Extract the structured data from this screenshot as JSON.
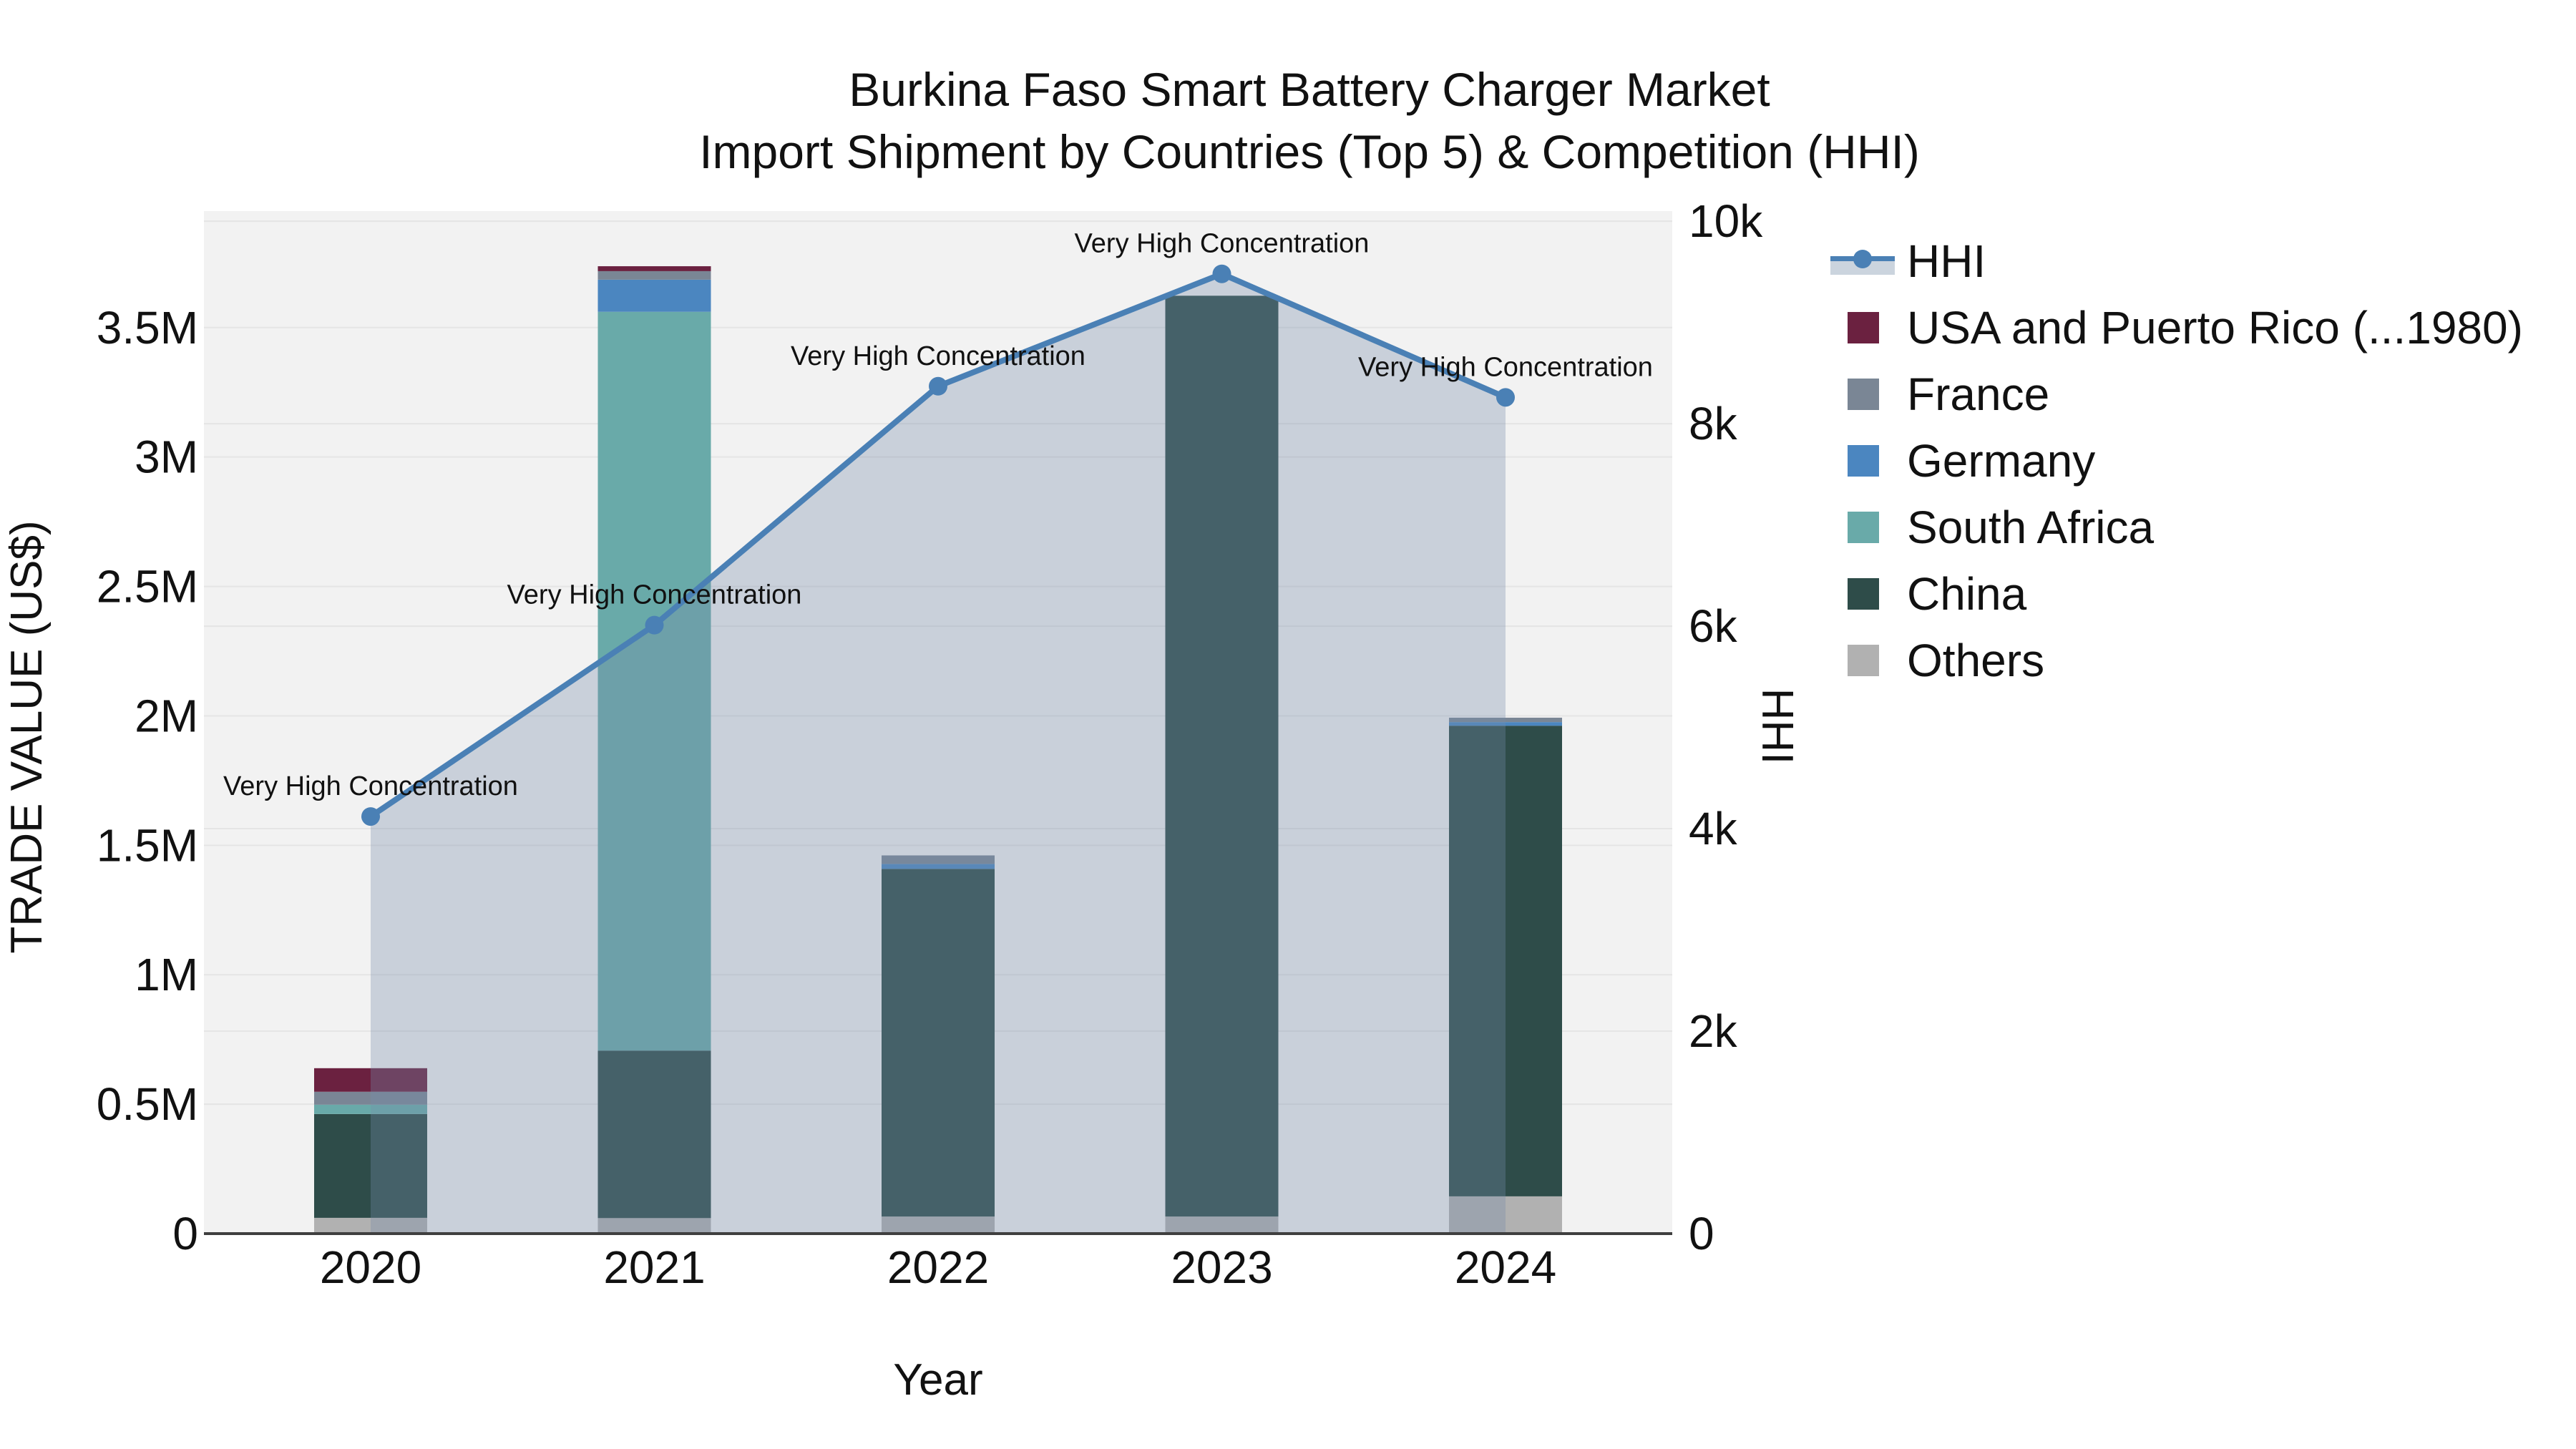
{
  "title": {
    "line1": "Burkina Faso Smart Battery Charger Market",
    "line2": "Import Shipment by Countries (Top 5) & Competition (HHI)"
  },
  "axes": {
    "x_title": "Year",
    "y_left_title": "TRADE VALUE (US$)",
    "y_right_title": "HHI",
    "y_left_max": 3950000,
    "y_right_max": 10100,
    "y_left_ticks": [
      {
        "label": "0",
        "value": 0
      },
      {
        "label": "0.5M",
        "value": 500000
      },
      {
        "label": "1M",
        "value": 1000000
      },
      {
        "label": "1.5M",
        "value": 1500000
      },
      {
        "label": "2M",
        "value": 2000000
      },
      {
        "label": "2.5M",
        "value": 2500000
      },
      {
        "label": "3M",
        "value": 3000000
      },
      {
        "label": "3.5M",
        "value": 3500000
      }
    ],
    "y_right_ticks": [
      {
        "label": "0",
        "value": 0
      },
      {
        "label": "2k",
        "value": 2000
      },
      {
        "label": "4k",
        "value": 4000
      },
      {
        "label": "6k",
        "value": 6000
      },
      {
        "label": "8k",
        "value": 8000
      },
      {
        "label": "10k",
        "value": 10000
      }
    ]
  },
  "legend": {
    "items": [
      {
        "label": "HHI",
        "color": "#4a80b5",
        "type": "line"
      },
      {
        "label": "USA and Puerto Rico (...1980)",
        "color": "#6b2140",
        "type": "swatch"
      },
      {
        "label": "France",
        "color": "#7a8695",
        "type": "swatch"
      },
      {
        "label": "Germany",
        "color": "#4b86c0",
        "type": "swatch"
      },
      {
        "label": "South Africa",
        "color": "#69aaa9",
        "type": "swatch"
      },
      {
        "label": "China",
        "color": "#2e4c49",
        "type": "swatch"
      },
      {
        "label": "Others",
        "color": "#b1b1b1",
        "type": "swatch"
      }
    ]
  },
  "chart_data": {
    "type": "combo-stacked-bar-and-line",
    "categories": [
      "2020",
      "2021",
      "2022",
      "2023",
      "2024"
    ],
    "bar_unit": "US$",
    "series": [
      {
        "name": "Others",
        "color": "#b1b1b1",
        "values": [
          61000,
          60000,
          66000,
          66000,
          144000
        ]
      },
      {
        "name": "China",
        "color": "#2e4c49",
        "values": [
          401000,
          647000,
          1343000,
          3557000,
          1818000
        ]
      },
      {
        "name": "South Africa",
        "color": "#69aaa9",
        "values": [
          36000,
          2854000,
          0,
          0,
          0
        ]
      },
      {
        "name": "Germany",
        "color": "#4b86c0",
        "values": [
          0,
          124000,
          19000,
          0,
          14000
        ]
      },
      {
        "name": "France",
        "color": "#7a8695",
        "values": [
          50000,
          33000,
          33000,
          0,
          17000
        ]
      },
      {
        "name": "USA and Puerto Rico (...1980)",
        "color": "#6b2140",
        "values": [
          91000,
          19000,
          0,
          0,
          0
        ]
      }
    ],
    "bar_totals": [
      639000,
      3737000,
      1461000,
      3623000,
      1993000
    ],
    "hhi": {
      "name": "HHI",
      "values": [
        4120,
        6010,
        8370,
        9480,
        8260
      ],
      "annotations": [
        "Very High Concentration",
        "Very High Concentration",
        "Very High Concentration",
        "Very High Concentration",
        "Very High Concentration"
      ],
      "line_color": "#4a80b5",
      "fill_color_rgba": "rgba(119,141,169,0.33)"
    },
    "title": "Burkina Faso Smart Battery Charger Market Import Shipment by Countries (Top 5) & Competition (HHI)",
    "xlabel": "Year",
    "ylabel_left": "TRADE VALUE (US$)",
    "ylabel_right": "HHI",
    "ylim_left": [
      0,
      3950000
    ],
    "ylim_right": [
      0,
      10100
    ],
    "grid": true,
    "legend_position": "right"
  },
  "style": {
    "plot_bg": "#f2f2f2",
    "grid_color": "#e5e5e5",
    "axis_line_color": "#3f3f3f",
    "tick_color": "#111111",
    "annotation_color": "#111111"
  }
}
